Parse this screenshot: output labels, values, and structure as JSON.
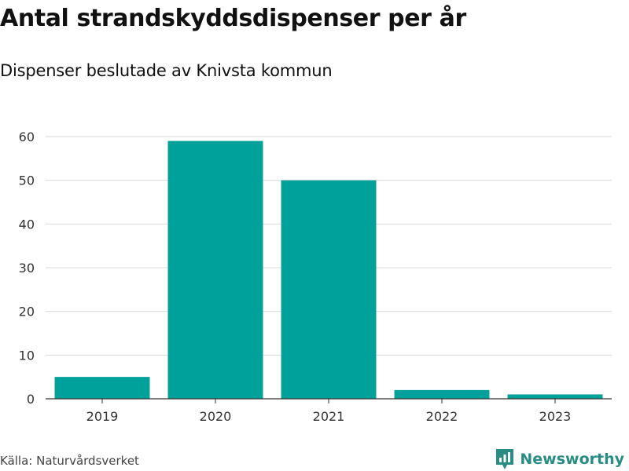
{
  "title": "Antal strandskyddsdispenser per år",
  "subtitle": "Dispenser beslutade av Knivsta kommun",
  "source": "Källa: Naturvårdsverket",
  "brand": {
    "name": "Newsworthy",
    "icon": "newsworthy-logo-icon",
    "color": "#2b8c84"
  },
  "chart_data": {
    "type": "bar",
    "categories": [
      "2019",
      "2020",
      "2021",
      "2022",
      "2023"
    ],
    "values": [
      5,
      59,
      50,
      2,
      1
    ],
    "title": "Antal strandskyddsdispenser per år",
    "subtitle": "Dispenser beslutade av Knivsta kommun",
    "xlabel": "",
    "ylabel": "",
    "ylim": [
      0,
      60
    ],
    "yticks": [
      0,
      10,
      20,
      30,
      40,
      50,
      60
    ],
    "grid": true,
    "legend": "none",
    "bar_color": "#00a19a"
  }
}
